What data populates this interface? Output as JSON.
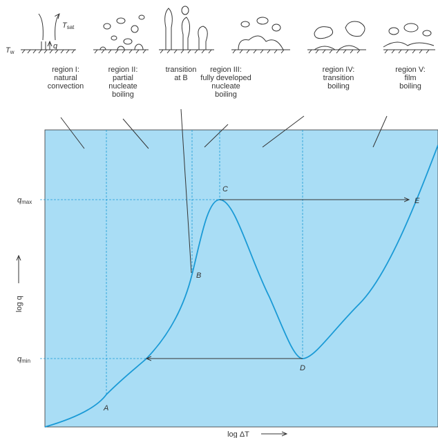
{
  "regions": [
    {
      "lines": [
        "region I:",
        "natural",
        "convection"
      ]
    },
    {
      "lines": [
        "region II:",
        "partial",
        "nucleate",
        "boiling"
      ]
    },
    {
      "lines": [
        "transition",
        "at B"
      ]
    },
    {
      "lines": [
        "region III:",
        "fully developed",
        "nucleate",
        "boiling"
      ]
    },
    {
      "lines": [
        "region IV:",
        "transition",
        "boiling"
      ]
    },
    {
      "lines": [
        "region V:",
        "film",
        "boiling"
      ]
    }
  ],
  "points": [
    "A",
    "B",
    "C",
    "D",
    "E"
  ],
  "q_max": {
    "symbol": "q",
    "sub": "max"
  },
  "q_min": {
    "symbol": "q",
    "sub": "min"
  },
  "axis": {
    "y_label": "log q",
    "x_label": "log ΔT"
  },
  "sketch": {
    "wall": "T",
    "wall_sub": "w",
    "sat": "T",
    "sat_sub": "sat",
    "flux": "q"
  }
}
